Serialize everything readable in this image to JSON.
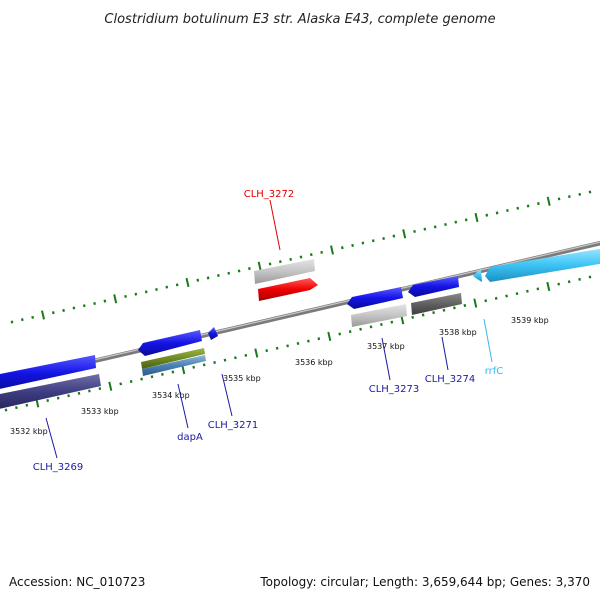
{
  "title": "Clostridium botulinum E3 str. Alaska E43, complete genome",
  "footer": {
    "accession": "Accession: NC_010723",
    "summary": "Topology: circular; Length: 3,659,644 bp; Genes: 3,370"
  },
  "colors": {
    "backbone": "#8c8c8c",
    "tick": "#1a7a1a",
    "forward_cds": "#1414e6",
    "label_blue": "#1a1aa6",
    "label_red": "#e00000",
    "label_cyan": "#33bbee"
  },
  "chart_data": {
    "type": "genome-map",
    "topology": "circular",
    "length_bp": 3659644,
    "gene_count": 3370,
    "position_ticks_kbp": [
      "3532 kbp",
      "3533 kbp",
      "3534 kbp",
      "3535 kbp",
      "3536 kbp",
      "3537 kbp",
      "3538 kbp",
      "3539 kbp"
    ],
    "genes": [
      {
        "name": "CLH_3269",
        "color": "#1a1aa6"
      },
      {
        "name": "dapA",
        "color": "#1a1aa6"
      },
      {
        "name": "CLH_3271",
        "color": "#1a1aa6"
      },
      {
        "name": "CLH_3272",
        "color": "#e00000"
      },
      {
        "name": "CLH_3273",
        "color": "#1a1aa6"
      },
      {
        "name": "CLH_3274",
        "color": "#1a1aa6"
      },
      {
        "name": "rrfC",
        "color": "#33bbee"
      }
    ]
  }
}
